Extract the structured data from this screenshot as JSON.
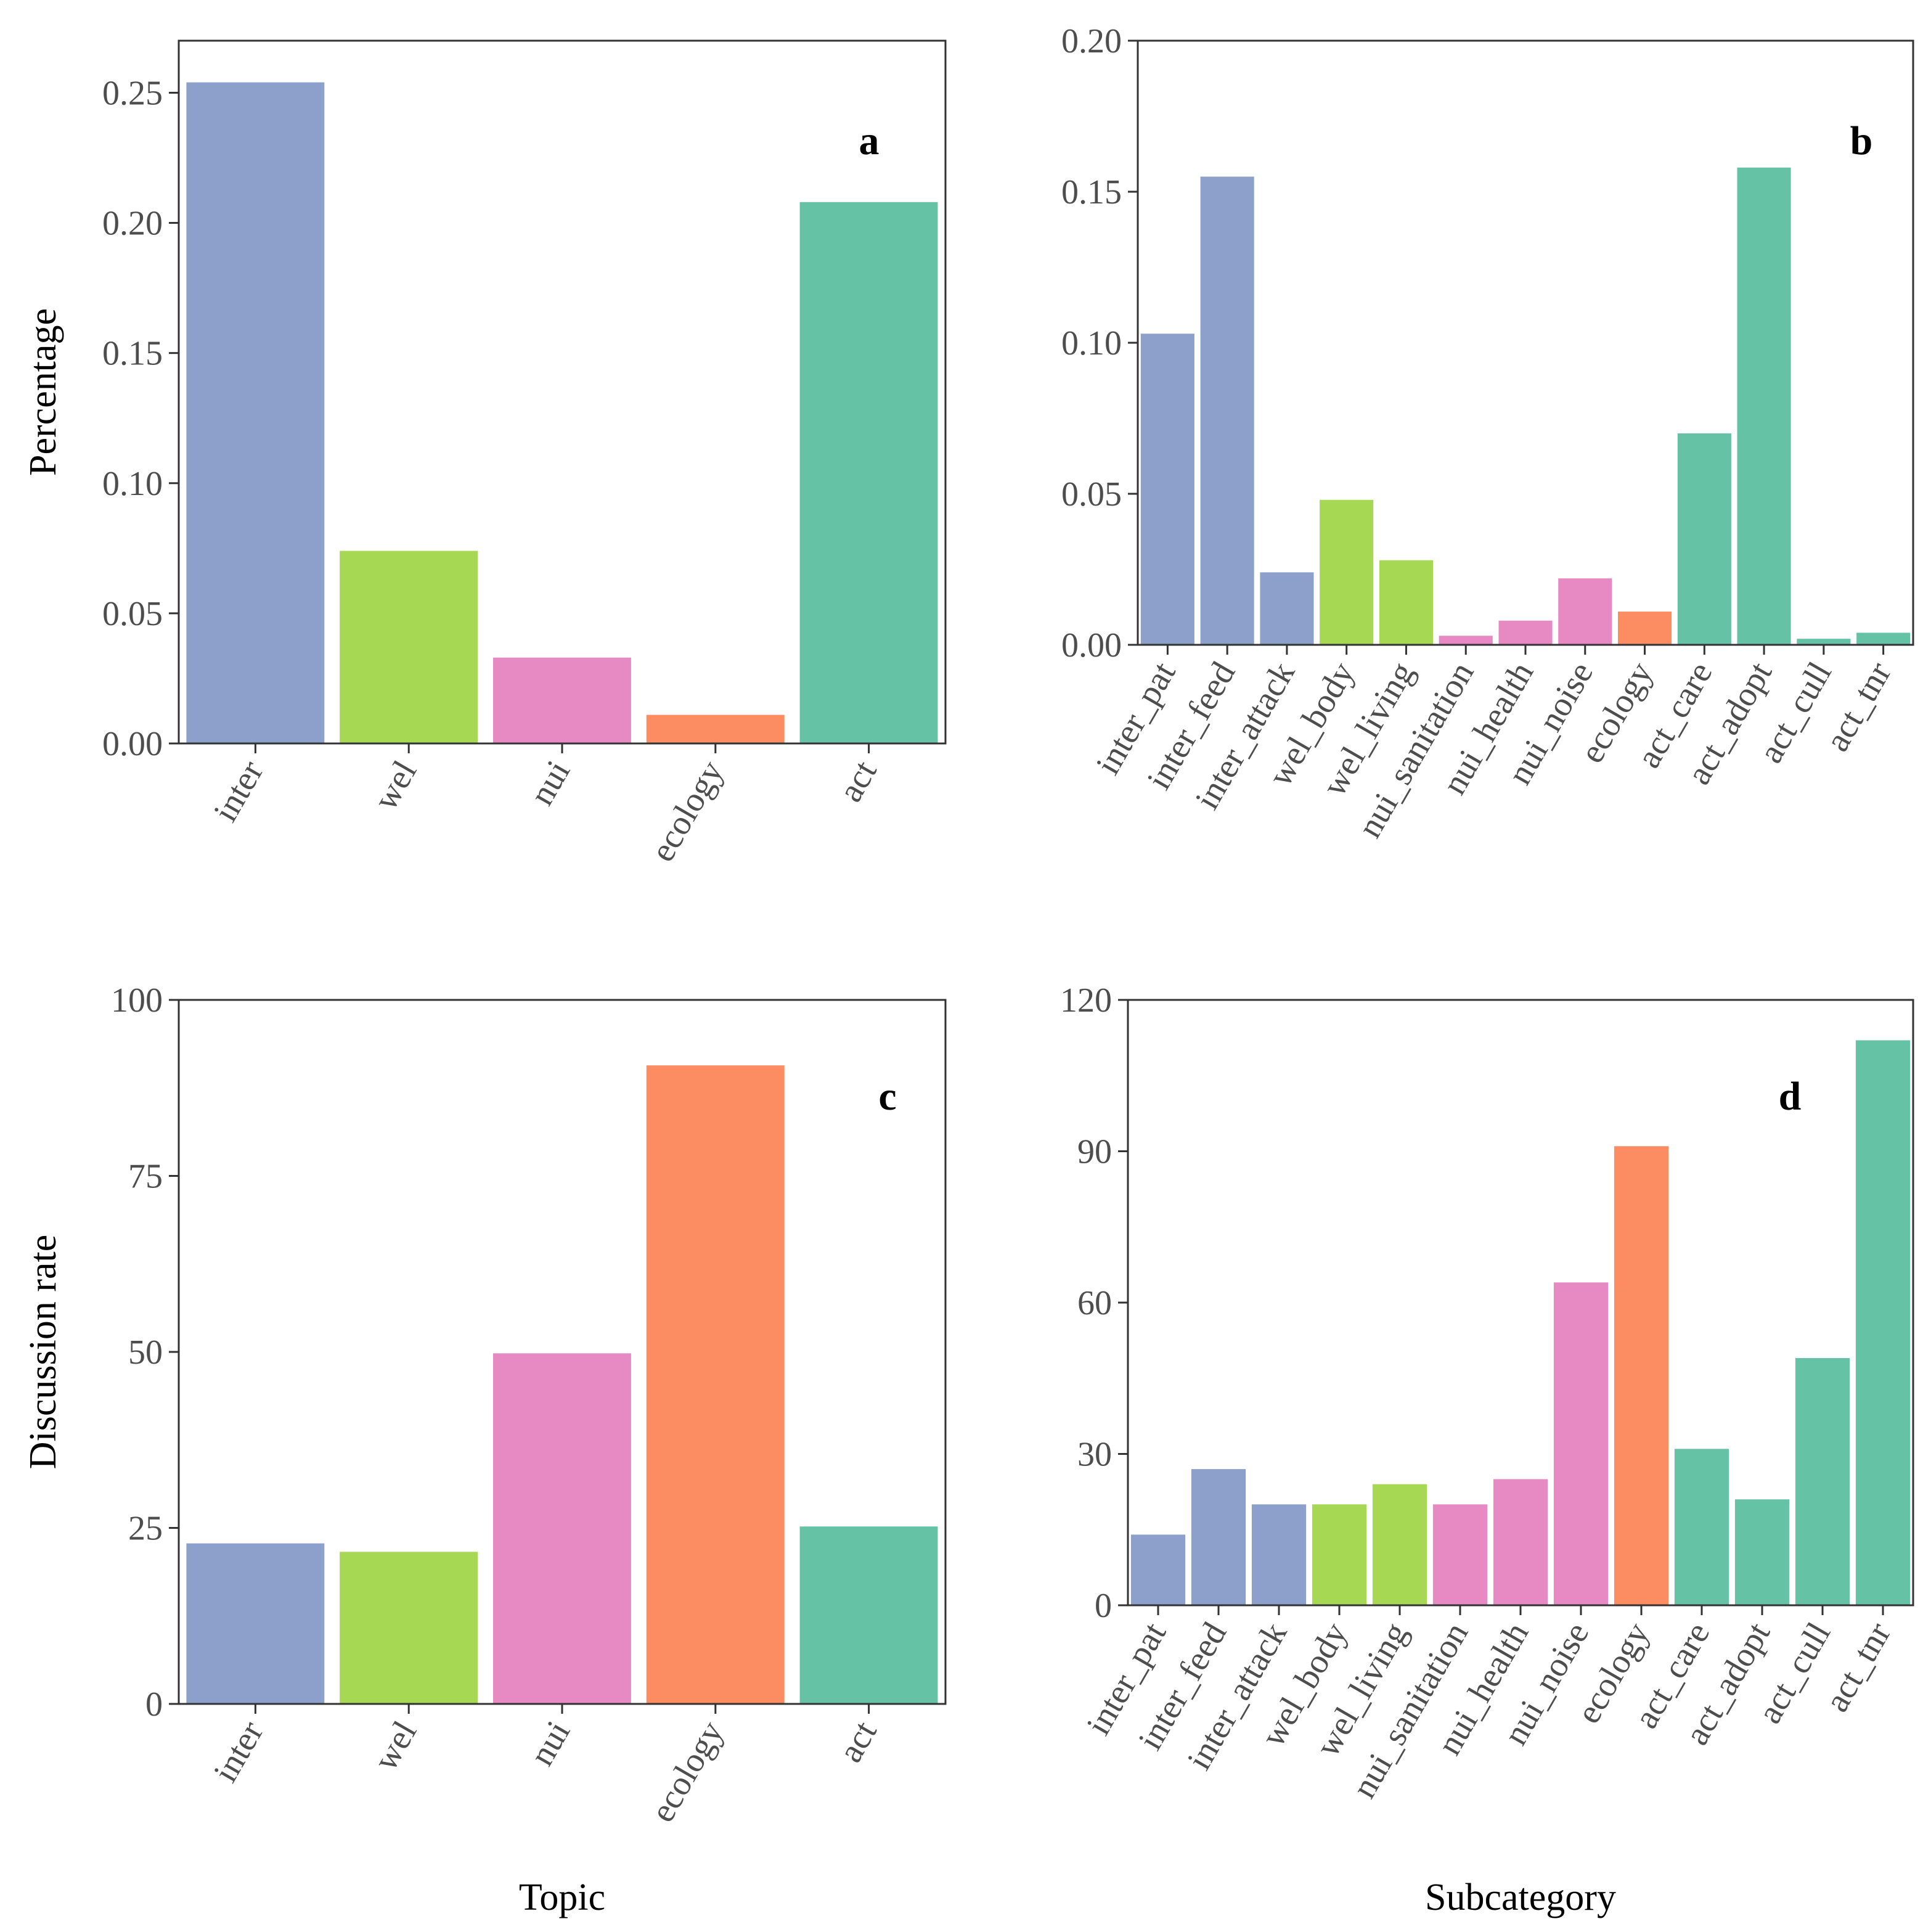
{
  "colors": {
    "inter": "#8DA0CB",
    "wel": "#A6D854",
    "nui": "#E78AC3",
    "ecology": "#FC8D62",
    "act": "#66C2A5",
    "axis": "#333333",
    "tick_text": "#4d4d4d"
  },
  "chart_data": [
    {
      "panel": "a",
      "type": "bar",
      "categories": [
        "inter",
        "wel",
        "nui",
        "ecology",
        "act"
      ],
      "groups": [
        "inter",
        "wel",
        "nui",
        "ecology",
        "act"
      ],
      "values": [
        0.254,
        0.074,
        0.033,
        0.011,
        0.208
      ],
      "ylim": [
        0,
        0.27
      ],
      "yticks": [
        0,
        0.05,
        0.1,
        0.15,
        0.2,
        0.25
      ],
      "ytick_labels": [
        "0.00",
        "0.05",
        "0.10",
        "0.15",
        "0.20",
        "0.25"
      ],
      "xlabel": "",
      "ylabel": "Percentage",
      "tag": "a"
    },
    {
      "panel": "b",
      "type": "bar",
      "categories": [
        "inter_pat",
        "inter_feed",
        "inter_attack",
        "wel_body",
        "wel_living",
        "nui_sanitation",
        "nui_health",
        "nui_noise",
        "ecology",
        "act_care",
        "act_adopt",
        "act_cull",
        "act_tnr"
      ],
      "groups": [
        "inter",
        "inter",
        "inter",
        "wel",
        "wel",
        "nui",
        "nui",
        "nui",
        "ecology",
        "act",
        "act",
        "act",
        "act"
      ],
      "values": [
        0.103,
        0.155,
        0.024,
        0.048,
        0.028,
        0.003,
        0.008,
        0.022,
        0.011,
        0.07,
        0.158,
        0.002,
        0.004
      ],
      "ylim": [
        0,
        0.2
      ],
      "yticks": [
        0,
        0.05,
        0.1,
        0.15,
        0.2
      ],
      "ytick_labels": [
        "0.00",
        "0.05",
        "0.10",
        "0.15",
        "0.20"
      ],
      "xlabel": "",
      "ylabel": "",
      "tag": "b"
    },
    {
      "panel": "c",
      "type": "bar",
      "categories": [
        "inter",
        "wel",
        "nui",
        "ecology",
        "act"
      ],
      "groups": [
        "inter",
        "wel",
        "nui",
        "ecology",
        "act"
      ],
      "values": [
        22.8,
        21.6,
        49.8,
        90.7,
        25.2
      ],
      "ylim": [
        0,
        100
      ],
      "yticks": [
        0,
        25,
        50,
        75,
        100
      ],
      "ytick_labels": [
        "0",
        "25",
        "50",
        "75",
        "100"
      ],
      "xlabel": "Topic",
      "ylabel": "Discussion rate",
      "tag": "c"
    },
    {
      "panel": "d",
      "type": "bar",
      "categories": [
        "inter_pat",
        "inter_feed",
        "inter_attack",
        "wel_body",
        "wel_living",
        "nui_sanitation",
        "nui_health",
        "nui_noise",
        "ecology",
        "act_care",
        "act_adopt",
        "act_cull",
        "act_tnr"
      ],
      "groups": [
        "inter",
        "inter",
        "inter",
        "wel",
        "wel",
        "nui",
        "nui",
        "nui",
        "ecology",
        "act",
        "act",
        "act",
        "act"
      ],
      "values": [
        14,
        27,
        20,
        20,
        24,
        20,
        25,
        64,
        91,
        31,
        21,
        49,
        112
      ],
      "ylim": [
        0,
        120
      ],
      "yticks": [
        0,
        30,
        60,
        90,
        120
      ],
      "ytick_labels": [
        "0",
        "30",
        "60",
        "90",
        "120"
      ],
      "xlabel": "Subcategory",
      "ylabel": "",
      "tag": "d"
    }
  ]
}
